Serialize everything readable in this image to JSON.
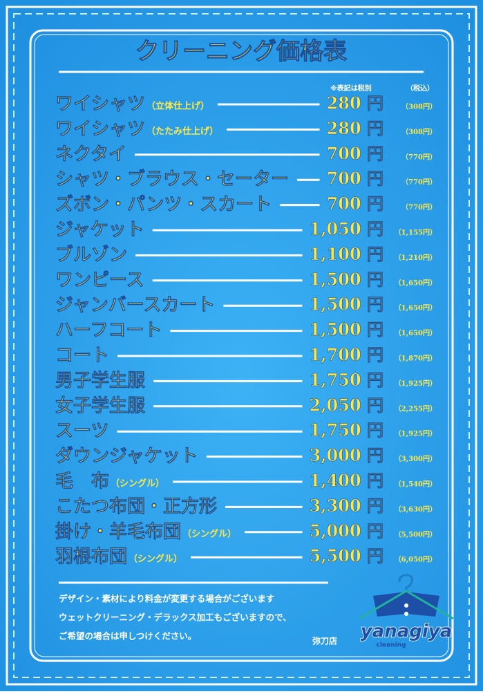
{
  "header": {
    "title": "クリーニング価格表",
    "note_excl": "※表記は税別",
    "note_incl": "（税込）"
  },
  "items": [
    {
      "name": "ワイシャツ",
      "sub": "（立体仕上げ）",
      "price": "280 円",
      "taxed": "（308円）"
    },
    {
      "name": "ワイシャツ",
      "sub": "（たたみ仕上げ）",
      "price": "280 円",
      "taxed": "（308円）"
    },
    {
      "name": "ネクタイ",
      "price": "700 円",
      "taxed": "（770円）"
    },
    {
      "name": "シャツ・ブラウス・セーター",
      "price": "700 円",
      "taxed": "（770円）"
    },
    {
      "name": "ズボン・パンツ・スカート",
      "price": "700 円",
      "taxed": "（770円）"
    },
    {
      "name": "ジャケット",
      "price": "1,050 円",
      "taxed": "（1,155円）"
    },
    {
      "name": "ブルゾン",
      "price": "1,100 円",
      "taxed": "（1,210円）"
    },
    {
      "name": "ワンピース",
      "price": "1,500 円",
      "taxed": "（1,650円）"
    },
    {
      "name": "ジャンバースカート",
      "price": "1,500 円",
      "taxed": "（1,650円）"
    },
    {
      "name": "ハーフコート",
      "price": "1,500 円",
      "taxed": "（1,650円）"
    },
    {
      "name": "コート",
      "price": "1,700 円",
      "taxed": "（1,870円）"
    },
    {
      "name": "男子学生服",
      "price": "1,750 円",
      "taxed": "（1,925円）"
    },
    {
      "name": "女子学生服",
      "price": "2,050 円",
      "taxed": "（2,255円）"
    },
    {
      "name": "スーツ",
      "price": "1,750 円",
      "taxed": "（1,925円）"
    },
    {
      "name": "ダウンジャケット",
      "price": "3,000 円",
      "taxed": "（3,300円）"
    },
    {
      "name": "毛　布",
      "sub": "（シングル）",
      "price": "1,400 円",
      "taxed": "（1,540円）"
    },
    {
      "name": "こたつ布団・正方形",
      "price": "3,300 円",
      "taxed": "（3,630円）"
    },
    {
      "name": "掛け・羊毛布団",
      "sub": "（シングル）",
      "price": "5,000 円",
      "taxed": "（5,500円）"
    },
    {
      "name": "羽根布団",
      "sub": "（シングル）",
      "price": "5,500 円",
      "taxed": "（6,050円）"
    }
  ],
  "footer": {
    "notes": [
      "デザイン・素材により料金が変更する場合がございます",
      "ウェットクリーニング・デラックス加工もございますので、",
      "ご希望の場合は申しつけください。"
    ],
    "store": "弥刀店",
    "logo": "yanagiya",
    "logo_sub": "cleaning"
  }
}
